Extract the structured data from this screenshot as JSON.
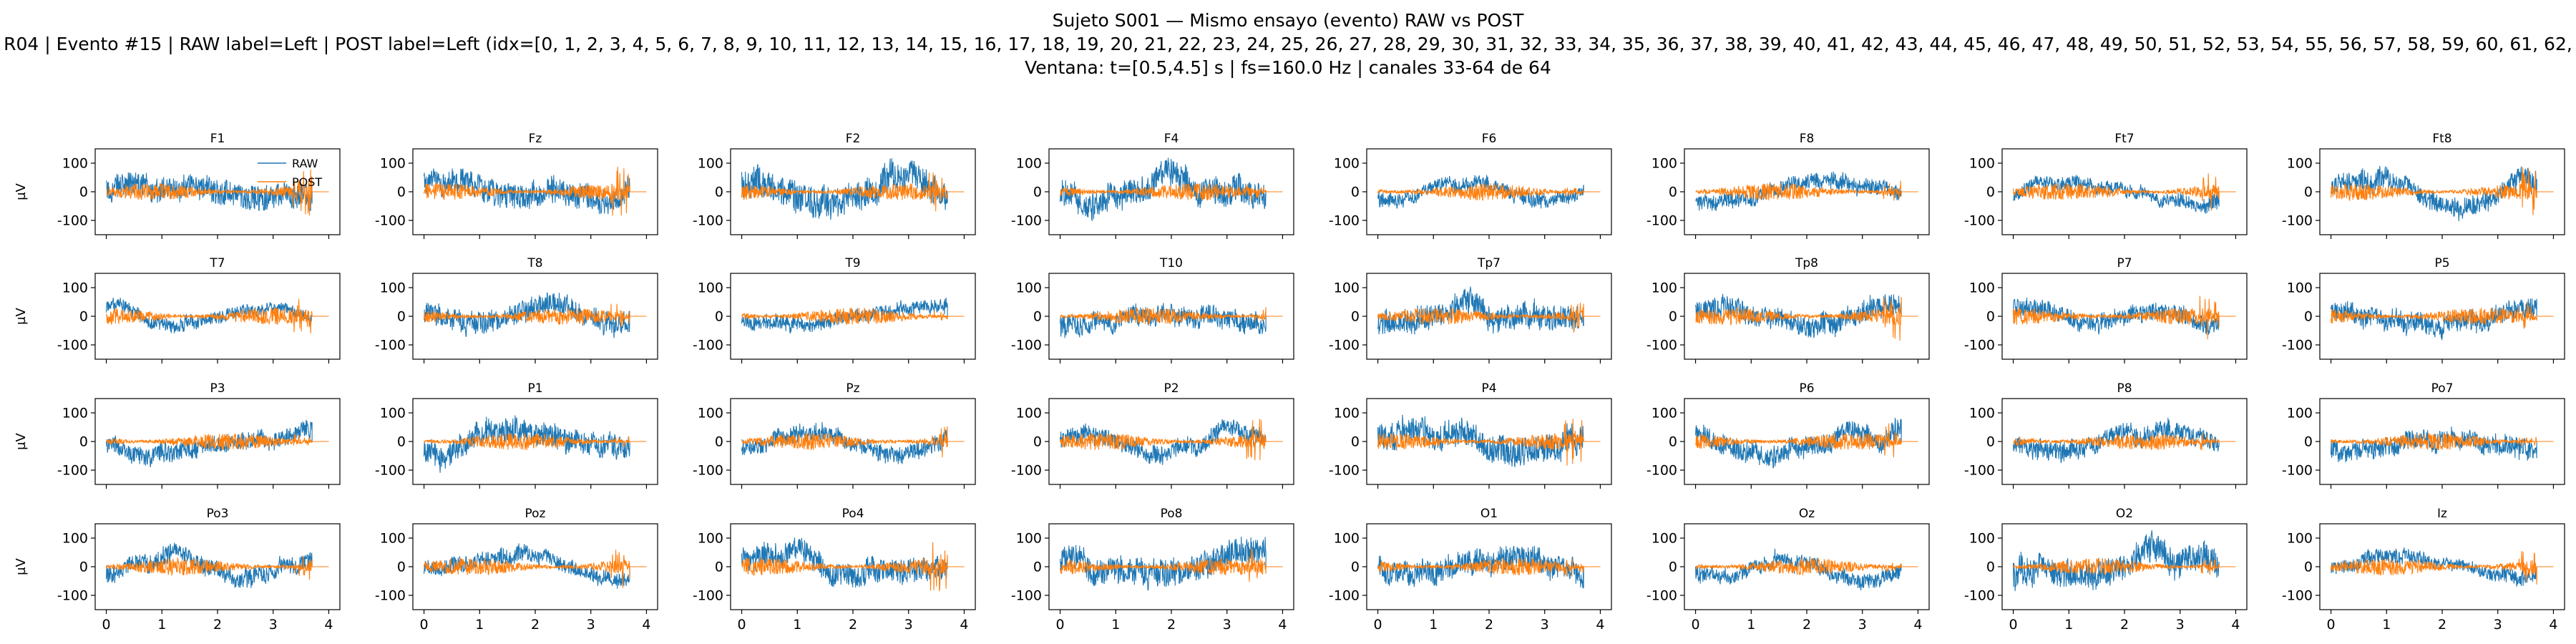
{
  "title": {
    "line1": "Sujeto S001 — Mismo ensayo (evento) RAW vs POST",
    "line2": "R04 | Evento #15 | RAW label=Left | POST label=Left (idx=[0, 1, 2, 3, 4, 5, 6, 7, 8, 9, 10, 11, 12, 13, 14, 15, 16, 17, 18, 19, 20, 21, 22, 23, 24, 25, 26, 27, 28, 29, 30, 31, 32, 33, 34, 35, 36, 37, 38, 39, 40, 41, 42, 43, 44, 45, 46, 47, 48, 49, 50, 51, 52, 53, 54, 55, 56, 57, 58, 59, 60, 61, 62,",
    "line3": "Ventana: t=[0.5,4.5] s | fs=160.0 Hz | canales 33-64 de 64"
  },
  "colors": {
    "raw": "#1f77b4",
    "post": "#ff7f0e"
  },
  "chart_data": {
    "type": "line",
    "layout": "small-multiples 4 rows x 8 columns",
    "channels": [
      "F1",
      "Fz",
      "F2",
      "F4",
      "F6",
      "F8",
      "Ft7",
      "Ft8",
      "T7",
      "T8",
      "T9",
      "T10",
      "Tp7",
      "Tp8",
      "P7",
      "P5",
      "P3",
      "P1",
      "Pz",
      "P2",
      "P4",
      "P6",
      "P8",
      "Po7",
      "Po3",
      "Poz",
      "Po4",
      "Po8",
      "O1",
      "Oz",
      "O2",
      "Iz"
    ],
    "series": [
      {
        "name": "RAW"
      },
      {
        "name": "POST"
      }
    ],
    "legend": {
      "placement": "top-right",
      "in_panel": "F1"
    },
    "ylabel": "µV",
    "xlim": [
      -0.2,
      4.2
    ],
    "ylim": [
      -150,
      150
    ],
    "xticks": [
      0,
      1,
      2,
      3,
      4
    ],
    "yticks": [
      100,
      0,
      -100
    ],
    "signal_duration_s": 3.7,
    "grid": false
  }
}
